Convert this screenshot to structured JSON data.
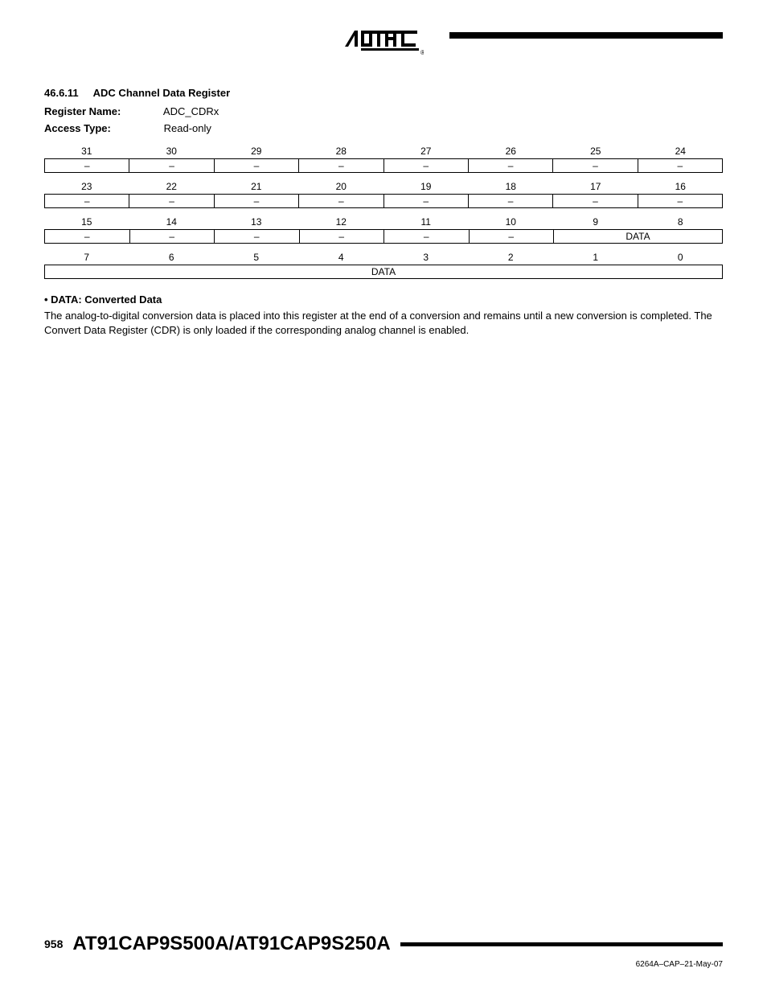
{
  "logo_text": "ATMEL",
  "section": {
    "number": "46.6.11",
    "title": "ADC Channel Data Register"
  },
  "meta": {
    "register_name_label": "Register Name:",
    "register_name_value": "ADC_CDRx",
    "access_type_label": "Access Type:",
    "access_type_value": "Read-only"
  },
  "register": {
    "rows": [
      {
        "bits": [
          "31",
          "30",
          "29",
          "28",
          "27",
          "26",
          "25",
          "24"
        ],
        "cells": [
          {
            "label": "–",
            "span": 1
          },
          {
            "label": "–",
            "span": 1
          },
          {
            "label": "–",
            "span": 1
          },
          {
            "label": "–",
            "span": 1
          },
          {
            "label": "–",
            "span": 1
          },
          {
            "label": "–",
            "span": 1
          },
          {
            "label": "–",
            "span": 1
          },
          {
            "label": "–",
            "span": 1
          }
        ]
      },
      {
        "bits": [
          "23",
          "22",
          "21",
          "20",
          "19",
          "18",
          "17",
          "16"
        ],
        "cells": [
          {
            "label": "–",
            "span": 1
          },
          {
            "label": "–",
            "span": 1
          },
          {
            "label": "–",
            "span": 1
          },
          {
            "label": "–",
            "span": 1
          },
          {
            "label": "–",
            "span": 1
          },
          {
            "label": "–",
            "span": 1
          },
          {
            "label": "–",
            "span": 1
          },
          {
            "label": "–",
            "span": 1
          }
        ]
      },
      {
        "bits": [
          "15",
          "14",
          "13",
          "12",
          "11",
          "10",
          "9",
          "8"
        ],
        "cells": [
          {
            "label": "–",
            "span": 1
          },
          {
            "label": "–",
            "span": 1
          },
          {
            "label": "–",
            "span": 1
          },
          {
            "label": "–",
            "span": 1
          },
          {
            "label": "–",
            "span": 1
          },
          {
            "label": "–",
            "span": 1
          },
          {
            "label": "DATA",
            "span": 2
          }
        ]
      },
      {
        "bits": [
          "7",
          "6",
          "5",
          "4",
          "3",
          "2",
          "1",
          "0"
        ],
        "cells": [
          {
            "label": "DATA",
            "span": 8
          }
        ]
      }
    ]
  },
  "description": {
    "bullet": "• DATA: Converted Data",
    "body": "The analog-to-digital conversion data is placed into this register at the end of a conversion and remains until a new conversion is completed. The Convert Data Register (CDR) is only loaded if the corresponding analog channel is enabled."
  },
  "footer": {
    "page": "958",
    "part": "AT91CAP9S500A/AT91CAP9S250A",
    "docid": "6264A–CAP–21-May-07"
  }
}
